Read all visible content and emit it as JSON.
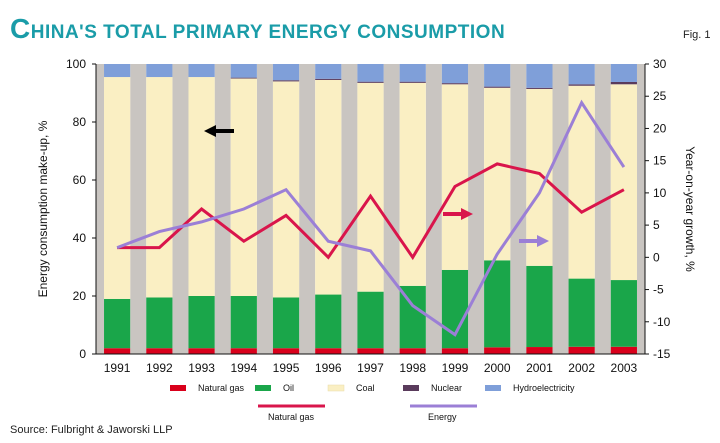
{
  "chart_data": {
    "type": "bar",
    "title": "China's total primary energy consumption",
    "title_initial": "C",
    "title_rest": "HINA'S TOTAL PRIMARY ENERGY CONSUMPTION",
    "figure_label": "Fig. 1",
    "categories": [
      "1991",
      "1992",
      "1993",
      "1994",
      "1995",
      "1996",
      "1997",
      "1998",
      "1999",
      "2000",
      "2001",
      "2002",
      "2003"
    ],
    "ylabel_left": "Energy consumption make-up, %",
    "ylabel_right": "Year-on-year growth, %",
    "ylim_left": [
      0,
      100
    ],
    "ylim_right": [
      -15,
      30
    ],
    "yticks_left": [
      "0",
      "20",
      "40",
      "60",
      "80",
      "100"
    ],
    "yticks_right": [
      "-15",
      "-10",
      "-5",
      "0",
      "5",
      "10",
      "15",
      "20",
      "25",
      "30"
    ],
    "stacked_series": [
      {
        "name": "Natural gas",
        "color": "#d9001b",
        "values": [
          2,
          2,
          2,
          2,
          2,
          2,
          2,
          2,
          2,
          2.3,
          2.4,
          2.5,
          2.5
        ]
      },
      {
        "name": "Oil",
        "color": "#1aa64a",
        "values": [
          17,
          17.5,
          18,
          18,
          17.5,
          18.5,
          19.5,
          21.5,
          27,
          30,
          28,
          23.5,
          23
        ]
      },
      {
        "name": "Coal",
        "color": "#faefc3",
        "values": [
          76.5,
          76,
          75.5,
          75,
          74.5,
          74,
          72,
          70,
          64,
          59.5,
          61,
          66.5,
          67.5
        ]
      },
      {
        "name": "Nuclear",
        "color": "#5a3b5c",
        "values": [
          0,
          0,
          0,
          0.3,
          0.4,
          0.4,
          0.4,
          0.4,
          0.4,
          0.4,
          0.4,
          0.5,
          0.8
        ]
      },
      {
        "name": "Hydroelectricity",
        "color": "#7f9fd9",
        "values": [
          4.5,
          4.5,
          4.5,
          4.7,
          5.6,
          5.1,
          6.1,
          6.1,
          6.6,
          7.8,
          8.2,
          7,
          6.2
        ]
      }
    ],
    "line_series": [
      {
        "name": "Natural gas",
        "color": "#d9154b",
        "axis": "right",
        "values": [
          1.5,
          1.5,
          7.5,
          2.5,
          6.5,
          0,
          9.5,
          0,
          11,
          14.5,
          13,
          7,
          10.5
        ]
      },
      {
        "name": "Energy",
        "color": "#9b7fd6",
        "axis": "right",
        "values": [
          1.5,
          4,
          5.5,
          7.5,
          10.5,
          2.5,
          1,
          -7.5,
          -12,
          0.5,
          10,
          24,
          14
        ]
      }
    ],
    "legend_labels": {
      "natural_gas": "Natural gas",
      "oil": "Oil",
      "coal": "Coal",
      "nuclear": "Nuclear",
      "hydro": "Hydroelectricity",
      "line_gas": "Natural gas",
      "line_energy": "Energy"
    },
    "source": "Source: Fulbright & Jaworski LLP"
  }
}
